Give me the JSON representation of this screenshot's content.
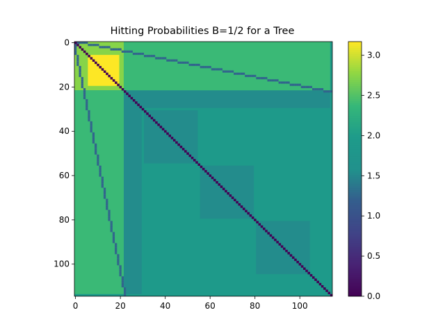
{
  "chart_data": {
    "type": "heatmap",
    "title": "Hitting Probabilities B=1/2 for a Tree",
    "xlabel": "",
    "ylabel": "",
    "size": 115,
    "xlim": [
      0,
      114
    ],
    "ylim": [
      114,
      0
    ],
    "x_ticks": [
      0,
      20,
      40,
      60,
      80,
      100
    ],
    "y_ticks": [
      0,
      20,
      40,
      60,
      80,
      100
    ],
    "colormap": "viridis",
    "colorbar": {
      "vmin": 0.0,
      "vmax": 3.17,
      "ticks": [
        0.0,
        0.5,
        1.0,
        1.5,
        2.0,
        2.5,
        3.0
      ],
      "tick_labels": [
        "0.0",
        "0.5",
        "1.0",
        "1.5",
        "2.0",
        "2.5",
        "3.0"
      ]
    },
    "structure": {
      "description_values": {
        "diagonal": 0.0,
        "parent_child_band": 1.25,
        "top_left_block_high": 3.17,
        "top_left_block_mid": 2.75,
        "secondary_blocks": 1.55,
        "off_block_upper_right": 2.4,
        "off_block_lower_left": 2.4,
        "background": 1.95
      },
      "blocks": [
        {
          "rows": [
            0,
            22
          ],
          "cols": [
            0,
            22
          ],
          "value": 2.75
        },
        {
          "rows": [
            6,
            20
          ],
          "cols": [
            6,
            20
          ],
          "value": 3.17
        },
        {
          "rows": [
            22,
            114
          ],
          "cols": [
            22,
            30
          ],
          "value": 1.55
        },
        {
          "rows": [
            22,
            30
          ],
          "cols": [
            22,
            114
          ],
          "value": 1.55
        },
        {
          "rows": [
            31,
            55
          ],
          "cols": [
            31,
            55
          ],
          "value": 1.55
        },
        {
          "rows": [
            56,
            80
          ],
          "cols": [
            56,
            80
          ],
          "value": 1.55
        },
        {
          "rows": [
            81,
            105
          ],
          "cols": [
            81,
            105
          ],
          "value": 1.55
        },
        {
          "rows": [
            0,
            22
          ],
          "cols": [
            22,
            114
          ],
          "value": 2.4
        },
        {
          "rows": [
            22,
            114
          ],
          "cols": [
            0,
            22
          ],
          "value": 2.4
        }
      ]
    }
  }
}
